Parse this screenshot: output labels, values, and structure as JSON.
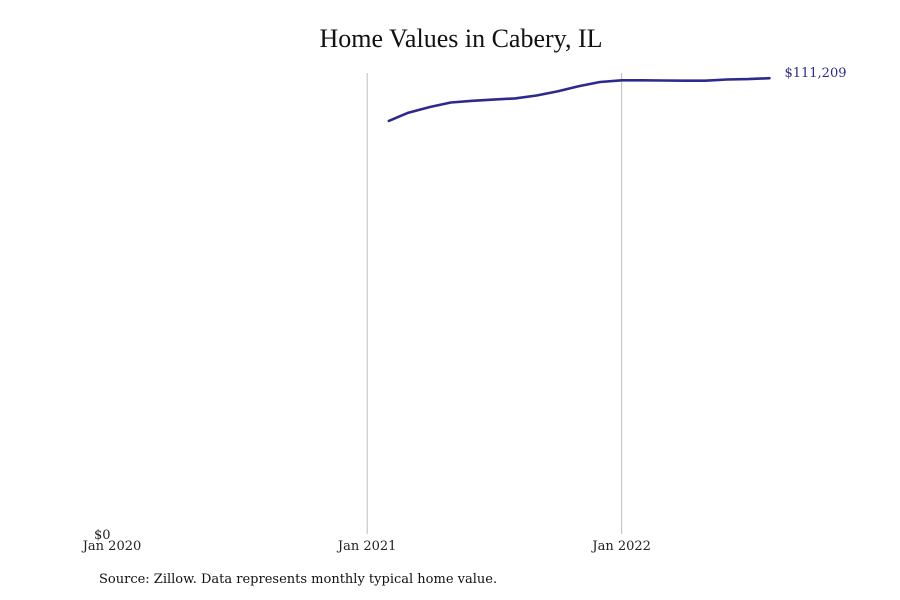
{
  "chart_data": {
    "type": "line",
    "title": "Home Values in Cabery, IL",
    "source": "Source: Zillow. Data represents monthly typical home value.",
    "xlabel": "",
    "ylabel": "",
    "x_ticks": [
      {
        "date": "2020-01-01",
        "label": "Jan 2020"
      },
      {
        "date": "2021-01-01",
        "label": "Jan 2021"
      },
      {
        "date": "2022-01-01",
        "label": "Jan 2022"
      }
    ],
    "y_ticks": [
      {
        "value": 0,
        "label": "$0"
      }
    ],
    "xlim": [
      "2020-01-01",
      "2022-10-01"
    ],
    "ylim": [
      0,
      112000
    ],
    "grid": {
      "vertical": true,
      "horizontal": false
    },
    "line_color": "#2e2a8c",
    "end_label": "$111,209",
    "series": [
      {
        "x": [
          "2021-02-01",
          "2021-03-01",
          "2021-04-01",
          "2021-05-01",
          "2021-06-01",
          "2021-07-01",
          "2021-08-01",
          "2021-09-01",
          "2021-10-01",
          "2021-11-01",
          "2021-12-01",
          "2022-01-01",
          "2022-02-01",
          "2022-03-01",
          "2022-04-01",
          "2022-05-01",
          "2022-06-01",
          "2022-07-01",
          "2022-08-01"
        ],
        "y": [
          100800,
          102800,
          104200,
          105300,
          105700,
          106000,
          106300,
          107000,
          108000,
          109300,
          110300,
          110700,
          110700,
          110650,
          110600,
          110600,
          110900,
          111000,
          111209
        ]
      }
    ]
  }
}
